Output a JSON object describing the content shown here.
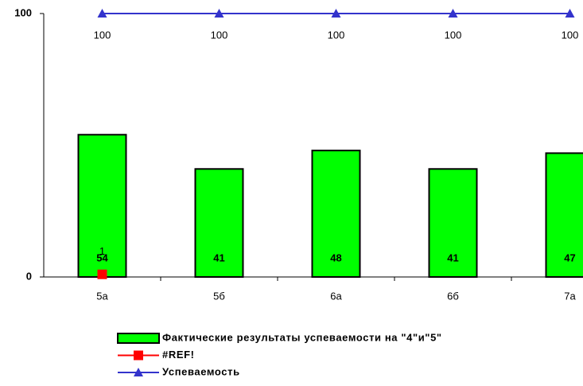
{
  "chart_data": {
    "type": "bar",
    "categories": [
      "5а",
      "5б",
      "6а",
      "6б",
      "7а"
    ],
    "series": [
      {
        "name": "Фактические результаты успеваемости на \"4\"и\"5\"",
        "type": "bar",
        "color": "#00ff00",
        "values": [
          54,
          41,
          48,
          41,
          47
        ]
      },
      {
        "name": "#REF!",
        "type": "line",
        "color": "#ff0000",
        "marker": "square",
        "values": [
          1,
          null,
          null,
          null,
          null
        ]
      },
      {
        "name": "Успеваемость",
        "type": "line",
        "color": "#3333cc",
        "marker": "triangle",
        "values": [
          100,
          100,
          100,
          100,
          100
        ]
      }
    ],
    "ylim": [
      0,
      100
    ],
    "yticks": [
      0,
      100
    ],
    "grid": false
  }
}
